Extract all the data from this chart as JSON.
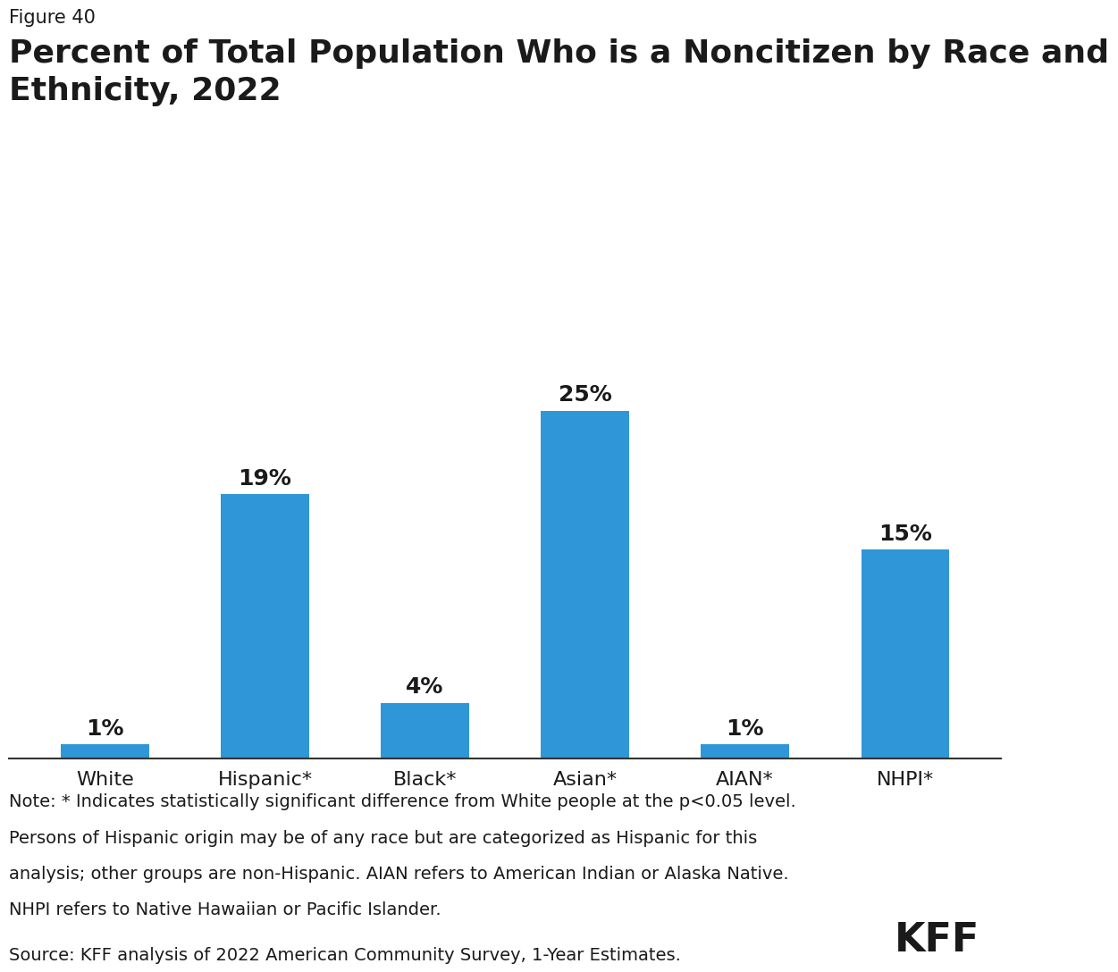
{
  "figure_label": "Figure 40",
  "title": "Percent of Total Population Who is a Noncitizen by Race and\nEthnicity, 2022",
  "categories": [
    "White",
    "Hispanic*",
    "Black*",
    "Asian*",
    "AIAN*",
    "NHPI*"
  ],
  "values": [
    1,
    19,
    4,
    25,
    1,
    15
  ],
  "bar_color": "#2f96d8",
  "bar_labels": [
    "1%",
    "19%",
    "4%",
    "25%",
    "1%",
    "15%"
  ],
  "ylim": [
    0,
    30
  ],
  "background_color": "#ffffff",
  "text_color": "#1a1a1a",
  "note_line1": "Note: * Indicates statistically significant difference from White people at the p<0.05 level.",
  "note_line2": "Persons of Hispanic origin may be of any race but are categorized as Hispanic for this",
  "note_line3": "analysis; other groups are non-Hispanic. AIAN refers to American Indian or Alaska Native.",
  "note_line4": "NHPI refers to Native Hawaiian or Pacific Islander.",
  "source_line": "Source: KFF analysis of 2022 American Community Survey, 1-Year Estimates.",
  "kff_logo_text": "KFF",
  "title_fontsize": 26,
  "figure_label_fontsize": 15,
  "bar_label_fontsize": 18,
  "tick_label_fontsize": 16,
  "note_fontsize": 14,
  "source_fontsize": 14,
  "kff_fontsize": 32
}
